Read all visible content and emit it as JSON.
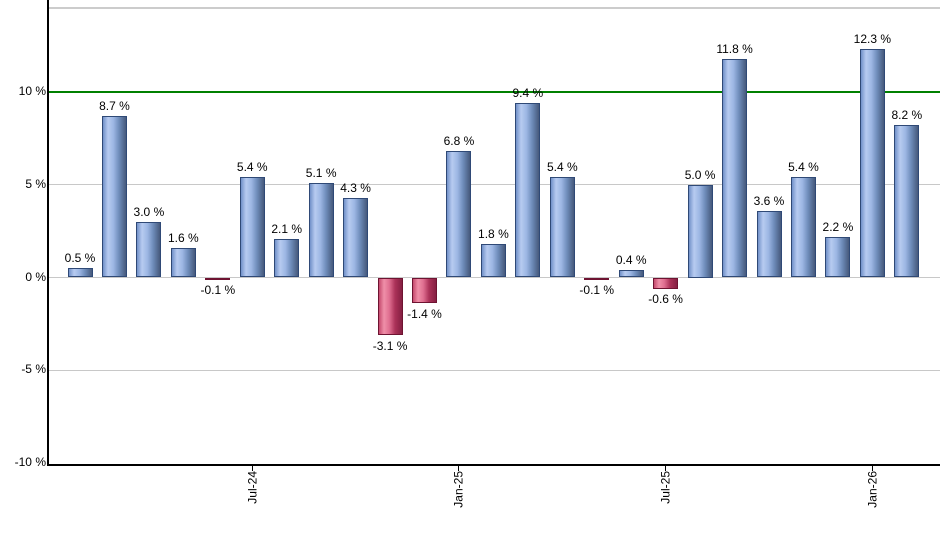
{
  "chart_data": {
    "type": "bar",
    "title": "",
    "xlabel": "",
    "ylabel": "",
    "values": [
      0.5,
      8.7,
      3.0,
      1.6,
      -0.1,
      5.4,
      2.1,
      5.1,
      4.3,
      -3.1,
      -1.4,
      6.8,
      1.8,
      9.4,
      5.4,
      -0.1,
      0.4,
      -0.6,
      5.0,
      11.8,
      3.6,
      5.4,
      2.2,
      12.3,
      8.2
    ],
    "bar_labels": [
      "0.5 %",
      "8.7 %",
      "3.0 %",
      "1.6 %",
      "-0.1 %",
      "5.4 %",
      "2.1 %",
      "5.1 %",
      "4.3 %",
      "-3.1 %",
      "-1.4 %",
      "6.8 %",
      "1.8 %",
      "9.4 %",
      "5.4 %",
      "-0.1 %",
      "0.4 %",
      "-0.6 %",
      "5.0 %",
      "11.8 %",
      "3.6 %",
      "5.4 %",
      "2.2 %",
      "12.3 %",
      "8.2 %"
    ],
    "x_ticks": [
      {
        "label": "Jul-24",
        "bar_index": 5
      },
      {
        "label": "Jan-25",
        "bar_index": 11
      },
      {
        "label": "Jul-25",
        "bar_index": 17
      },
      {
        "label": "Jan-26",
        "bar_index": 23
      }
    ],
    "y_ticks": [
      {
        "label": "10 %",
        "value": 10
      },
      {
        "label": "5 %",
        "value": 5
      },
      {
        "label": "0 %",
        "value": 0
      },
      {
        "label": "-5 %",
        "value": -5
      },
      {
        "label": "-10 %",
        "value": -10
      }
    ],
    "ylim": [
      -10,
      14.5
    ],
    "grid": "horizontal-gray-lines",
    "legend": "none",
    "reference_line": {
      "value": 10,
      "color": "#008000"
    },
    "colors": {
      "background": "#ffffff",
      "gridline": "#c8c8c8",
      "plot_top_border": "#cccccc",
      "axis": "#000000",
      "reference_green": "#008000",
      "label_text": "#000000",
      "bar_positive_border": "#2f4976",
      "bar_positive_gradient": [
        "#7191c9",
        "#b7cbf0",
        "#9db7e4",
        "#6e8cba",
        "#46597b"
      ],
      "bar_negative_border": "#6e1331",
      "bar_negative_gradient": [
        "#c54a6e",
        "#ef8fa8",
        "#df6e90",
        "#ab3258",
        "#851f42"
      ]
    }
  }
}
